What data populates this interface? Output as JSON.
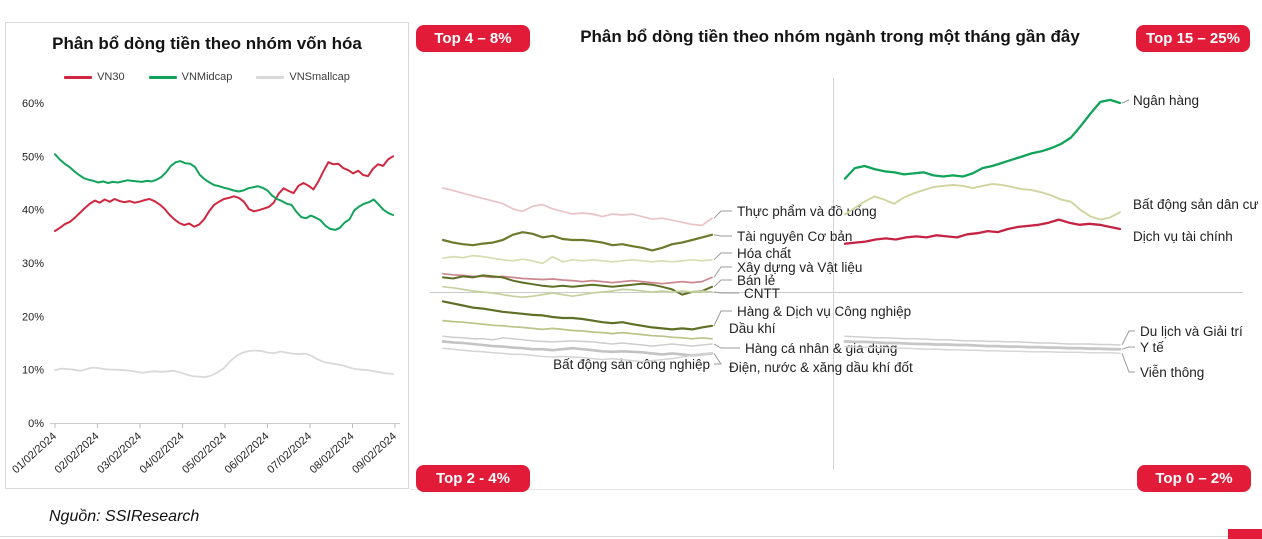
{
  "page": {
    "source_label": "Nguồn: SSIResearch"
  },
  "colors": {
    "brand_red": "#e11b38",
    "vn30_red": "#cf2740",
    "midcap_green": "#12a35a",
    "smallcap_gray": "#d9d9d9",
    "axis_gray": "#c9c9c9"
  },
  "badges": {
    "top_left": "Top 4 – 8%",
    "top_right": "Top 15 – 25%",
    "bottom_left": "Top 2 - 4%",
    "bottom_right": "Top 0 – 2%"
  },
  "chart_data": [
    {
      "id": "market-cap",
      "type": "line",
      "title": "Phân bổ dòng tiền theo nhóm vốn hóa",
      "xlabel": "",
      "ylabel": "",
      "ylim": [
        0,
        60
      ],
      "grid": false,
      "legend_position": "top",
      "yticks": [
        "60%",
        "50%",
        "40%",
        "30%",
        "20%",
        "10%",
        "0%"
      ],
      "x_tick_labels": [
        "01/02/2024",
        "02/02/2024",
        "03/02/2024",
        "04/02/2024",
        "05/02/2024",
        "06/02/2024",
        "07/02/2024",
        "08/02/2024",
        "09/02/2024"
      ],
      "series": [
        {
          "id": "vn30",
          "name": "VN30",
          "color": "#cf2740",
          "values": [
            36.0,
            36.6,
            37.3,
            37.7,
            38.5,
            39.4,
            40.3,
            41.1,
            41.7,
            41.3,
            41.9,
            41.5,
            42.0,
            41.6,
            41.4,
            41.6,
            41.3,
            41.5,
            41.8,
            42.0,
            41.6,
            41.0,
            40.2,
            39.1,
            38.2,
            37.5,
            37.1,
            37.4,
            36.8,
            37.2,
            38.2,
            39.7,
            40.9,
            41.5,
            42.0,
            42.2,
            42.5,
            42.2,
            41.5,
            40.1,
            39.7,
            39.9,
            40.2,
            40.5,
            41.3,
            43.0,
            44.0,
            43.5,
            43.1,
            44.5,
            45.0,
            44.5,
            43.8,
            45.3,
            47.2,
            48.9,
            48.5,
            48.6,
            47.8,
            47.4,
            46.8,
            47.3,
            46.5,
            46.3,
            47.7,
            48.5,
            48.2,
            49.4,
            50.0
          ]
        },
        {
          "id": "vnmidcap",
          "name": "VNMidcap",
          "color": "#12a35a",
          "values": [
            50.4,
            49.4,
            48.6,
            48.0,
            47.2,
            46.5,
            45.9,
            45.6,
            45.4,
            45.1,
            45.3,
            45.0,
            45.2,
            45.1,
            45.3,
            45.5,
            45.4,
            45.3,
            45.2,
            45.4,
            45.3,
            45.6,
            46.1,
            47.0,
            48.2,
            48.9,
            49.1,
            48.7,
            48.6,
            48.0,
            46.5,
            45.7,
            45.1,
            44.6,
            44.4,
            44.1,
            43.9,
            43.6,
            43.4,
            43.6,
            44.0,
            44.2,
            44.4,
            44.1,
            43.6,
            42.6,
            42.0,
            41.6,
            41.1,
            40.9,
            39.6,
            38.6,
            38.4,
            38.9,
            38.5,
            38.0,
            37.0,
            36.4,
            36.2,
            36.6,
            37.6,
            38.2,
            39.9,
            40.6,
            41.1,
            41.4,
            41.9,
            41.0,
            40.0,
            39.4,
            39.0
          ]
        },
        {
          "id": "vnsmallcap",
          "name": "VNSmallcap",
          "color": "#d9d9d9",
          "values": [
            9.9,
            10.2,
            10.1,
            10.0,
            9.8,
            10.1,
            10.4,
            10.3,
            10.1,
            10.0,
            10.0,
            9.9,
            9.8,
            9.6,
            9.4,
            9.6,
            9.7,
            9.6,
            9.7,
            9.8,
            9.5,
            9.1,
            8.8,
            8.7,
            8.6,
            8.9,
            9.5,
            10.3,
            11.6,
            12.6,
            13.2,
            13.5,
            13.6,
            13.5,
            13.2,
            13.1,
            13.4,
            13.2,
            13.0,
            12.9,
            13.0,
            12.6,
            11.9,
            11.4,
            11.2,
            11.0,
            10.8,
            10.4,
            10.1,
            10.0,
            9.9,
            9.7,
            9.5,
            9.3,
            9.2
          ]
        }
      ]
    },
    {
      "id": "sector",
      "type": "line",
      "title": "Phân bổ dòng tiền theo nhóm ngành trong một tháng gần đây",
      "xlabel": "",
      "ylabel": "",
      "value_unit": "%",
      "grid": false,
      "quadrant_ranges": {
        "top_left": "4 – 8%",
        "top_right": "15 – 25%",
        "bottom_left": "2 - 4%",
        "bottom_right": "0 – 2%"
      },
      "series": [
        {
          "id": "thuc-pham",
          "name": "Thực phẩm và đồ uống",
          "color": "#eac3c9",
          "group": "4-8",
          "values": [
            6.0,
            5.95,
            5.9,
            5.85,
            5.8,
            5.75,
            5.7,
            5.6,
            5.55,
            5.65,
            5.68,
            5.6,
            5.55,
            5.5,
            5.52,
            5.5,
            5.45,
            5.5,
            5.48,
            5.5,
            5.45,
            5.4,
            5.42,
            5.38,
            5.34,
            5.3,
            5.28,
            5.42
          ]
        },
        {
          "id": "tai-nguyen",
          "name": "Tài nguyên Cơ bản",
          "color": "#6d7a2d",
          "group": "4-8",
          "values": [
            5.0,
            4.95,
            4.92,
            4.9,
            4.93,
            4.95,
            5.0,
            5.1,
            5.15,
            5.12,
            5.05,
            5.08,
            5.02,
            5.0,
            5.0,
            4.98,
            4.95,
            4.9,
            4.92,
            4.88,
            4.85,
            4.8,
            4.85,
            4.92,
            4.95,
            5.0,
            5.05,
            5.1
          ]
        },
        {
          "id": "hoa-chat",
          "name": "Hóa chất",
          "color": "#d5deb2",
          "group": "4-8",
          "values": [
            4.65,
            4.68,
            4.66,
            4.7,
            4.68,
            4.65,
            4.62,
            4.6,
            4.63,
            4.6,
            4.55,
            4.68,
            4.58,
            4.62,
            4.6,
            4.62,
            4.6,
            4.58,
            4.6,
            4.62,
            4.6,
            4.58,
            4.6,
            4.58,
            4.6,
            4.62,
            4.6,
            4.62
          ]
        },
        {
          "id": "xay-dung",
          "name": "Xây dựng và Vật liệu",
          "color": "#cc8890",
          "group": "4-8",
          "values": [
            4.35,
            4.33,
            4.32,
            4.3,
            4.3,
            4.28,
            4.3,
            4.28,
            4.26,
            4.25,
            4.24,
            4.25,
            4.23,
            4.22,
            4.2,
            4.22,
            4.2,
            4.18,
            4.2,
            4.22,
            4.2,
            4.18,
            4.16,
            4.18,
            4.2,
            4.18,
            4.2,
            4.28
          ]
        },
        {
          "id": "ban-le",
          "name": "Bán lẻ",
          "color": "#5f7026",
          "group": "4-8",
          "values": [
            4.28,
            4.26,
            4.3,
            4.28,
            4.32,
            4.3,
            4.28,
            4.22,
            4.18,
            4.15,
            4.12,
            4.1,
            4.12,
            4.1,
            4.12,
            4.14,
            4.12,
            4.1,
            4.12,
            4.14,
            4.16,
            4.14,
            4.1,
            4.05,
            3.95,
            4.0,
            4.02,
            4.1
          ]
        },
        {
          "id": "cntt",
          "name": "CNTT",
          "color": "#c6d1a0",
          "group": "4-8",
          "values": [
            4.1,
            4.08,
            4.05,
            4.02,
            4.0,
            3.98,
            3.95,
            3.92,
            3.9,
            3.92,
            3.95,
            3.98,
            3.95,
            3.92,
            3.95,
            3.98,
            4.0,
            4.02,
            4.05,
            4.04,
            4.02,
            4.0,
            4.02,
            4.0,
            4.02,
            4.0,
            4.02,
            4.0
          ]
        },
        {
          "id": "hang-dv-cn",
          "name": "Hàng & Dịch vụ Công nghiệp",
          "color": "#5f7026",
          "group": "2-4",
          "values": [
            3.82,
            3.78,
            3.74,
            3.7,
            3.68,
            3.65,
            3.62,
            3.6,
            3.58,
            3.56,
            3.55,
            3.52,
            3.5,
            3.5,
            3.48,
            3.45,
            3.42,
            3.4,
            3.42,
            3.38,
            3.35,
            3.32,
            3.3,
            3.28,
            3.3,
            3.28,
            3.32,
            3.35
          ]
        },
        {
          "id": "dau-khi",
          "name": "Dầu khí",
          "color": "#b9c489",
          "group": "2-4",
          "values": [
            3.45,
            3.43,
            3.42,
            3.4,
            3.38,
            3.36,
            3.35,
            3.33,
            3.32,
            3.3,
            3.28,
            3.3,
            3.28,
            3.26,
            3.25,
            3.23,
            3.22,
            3.2,
            3.22,
            3.2,
            3.18,
            3.16,
            3.15,
            3.13,
            3.12,
            3.1,
            3.12,
            3.1
          ]
        },
        {
          "id": "hang-ca-nhan",
          "name": "Hàng cá nhân & gia dụng",
          "color": "#cdcdcd",
          "group": "2-4",
          "values": [
            3.15,
            3.13,
            3.12,
            3.1,
            3.1,
            3.08,
            3.12,
            3.1,
            3.08,
            3.06,
            3.05,
            3.04,
            3.05,
            3.06,
            3.05,
            3.04,
            3.02,
            3.0,
            3.02,
            3.0,
            2.98,
            2.96,
            2.98,
            3.0,
            2.98,
            2.96,
            2.98,
            3.0
          ]
        },
        {
          "id": "bds-cn",
          "name": "Bất động sản công nghiệp",
          "color": "#c3c3c3",
          "group": "2-4",
          "values": [
            3.05,
            3.03,
            3.02,
            3.0,
            2.98,
            2.96,
            2.95,
            2.93,
            2.92,
            2.9,
            2.9,
            2.88,
            2.9,
            2.92,
            2.9,
            2.88,
            2.86,
            2.85,
            2.86,
            2.85,
            2.84,
            2.82,
            2.8,
            2.82,
            2.8,
            2.78,
            2.8,
            2.82
          ]
        },
        {
          "id": "dien-nuoc",
          "name": "Điện, nước & xăng dầu khí đốt",
          "color": "#d4d4d4",
          "group": "2-4",
          "values": [
            2.92,
            2.9,
            2.88,
            2.86,
            2.85,
            2.83,
            2.82,
            2.8,
            2.8,
            2.78,
            2.76,
            2.75,
            2.76,
            2.75,
            2.74,
            2.72,
            2.7,
            2.72,
            2.7,
            2.68,
            2.66,
            2.68,
            2.7,
            2.72,
            2.75,
            2.78,
            2.8,
            2.82
          ]
        },
        {
          "id": "ngan-hang",
          "name": "Ngân hàng",
          "color": "#12a35a",
          "group": "15-25",
          "values": [
            20.4,
            20.9,
            21.0,
            20.85,
            20.75,
            20.7,
            20.6,
            20.65,
            20.7,
            20.55,
            20.5,
            20.55,
            20.5,
            20.65,
            20.9,
            21.0,
            21.15,
            21.3,
            21.45,
            21.6,
            21.7,
            21.85,
            22.05,
            22.35,
            22.9,
            23.5,
            24.05,
            24.15,
            24.0
          ]
        },
        {
          "id": "bds-dan-cu",
          "name": "Bất động sản dân cư",
          "color": "#d0d49e",
          "group": "15-25",
          "values": [
            18.7,
            19.0,
            19.3,
            19.55,
            19.4,
            19.2,
            19.5,
            19.7,
            19.85,
            20.0,
            20.05,
            20.1,
            20.05,
            19.95,
            20.05,
            20.15,
            20.1,
            20.0,
            19.9,
            19.85,
            19.75,
            19.6,
            19.4,
            19.3,
            18.9,
            18.6,
            18.45,
            18.55,
            18.8
          ]
        },
        {
          "id": "dich-vu-tc",
          "name": "Dịch vụ tài chính",
          "color": "#c42343",
          "group": "15-25",
          "values": [
            17.3,
            17.35,
            17.4,
            17.5,
            17.55,
            17.5,
            17.6,
            17.65,
            17.6,
            17.7,
            17.65,
            17.6,
            17.75,
            17.8,
            17.9,
            17.85,
            18.0,
            18.1,
            18.15,
            18.2,
            18.3,
            18.45,
            18.3,
            18.2,
            18.25,
            18.2,
            18.1,
            18.0
          ]
        },
        {
          "id": "du-lich",
          "name": "Du lịch và Giải trí",
          "color": "#cfcfcf",
          "group": "0-2",
          "values": [
            1.15,
            1.14,
            1.13,
            1.12,
            1.12,
            1.11,
            1.1,
            1.1,
            1.09,
            1.08,
            1.08,
            1.07,
            1.06,
            1.06,
            1.05,
            1.05,
            1.04,
            1.04,
            1.03,
            1.02,
            1.02,
            1.01,
            1.0,
            1.0,
            1.0,
            0.99,
            0.99,
            0.98
          ]
        },
        {
          "id": "y-te",
          "name": "Y tế",
          "color": "#c7c7c7",
          "group": "0-2",
          "values": [
            1.05,
            1.04,
            1.04,
            1.03,
            1.02,
            1.02,
            1.01,
            1.0,
            1.0,
            0.99,
            0.99,
            0.98,
            0.98,
            0.97,
            0.96,
            0.96,
            0.95,
            0.95,
            0.94,
            0.94,
            0.93,
            0.93,
            0.92,
            0.92,
            0.91,
            0.91,
            0.9,
            0.9
          ]
        },
        {
          "id": "vien-thong",
          "name": "Viễn thông",
          "color": "#d6d6d6",
          "group": "0-2",
          "values": [
            0.95,
            0.94,
            0.94,
            0.93,
            0.93,
            0.92,
            0.92,
            0.91,
            0.9,
            0.9,
            0.89,
            0.89,
            0.88,
            0.88,
            0.87,
            0.87,
            0.86,
            0.86,
            0.85,
            0.85,
            0.85,
            0.84,
            0.84,
            0.84,
            0.83,
            0.83,
            0.83,
            0.82
          ]
        }
      ]
    }
  ]
}
